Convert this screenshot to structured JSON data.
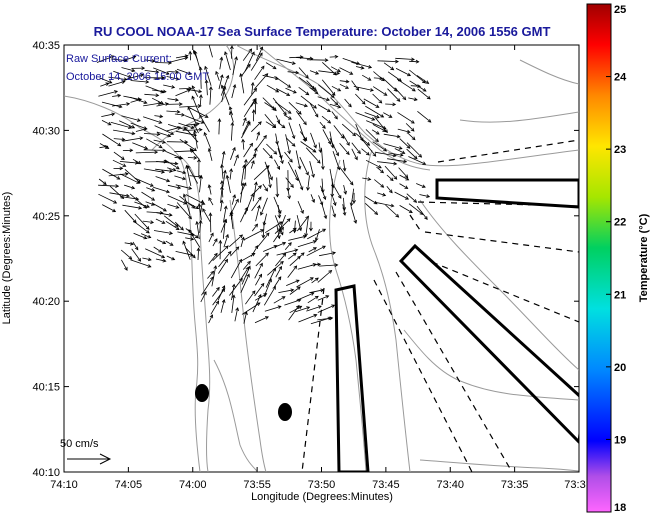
{
  "chart_data": {
    "type": "map",
    "title": "RU COOL  NOAA-17  Sea Surface Temperature:  October 14, 2006 1556 GMT",
    "subtitle_lines": [
      "Raw Surface Current:",
      "October 14, 2006 15:00 GMT"
    ],
    "xlabel": "Longitude (Degrees:Minutes)",
    "ylabel": "Latitude (Degrees:Minutes)",
    "x_ticks": [
      "74:10",
      "74:05",
      "74:00",
      "73:55",
      "73:50",
      "73:45",
      "73:40",
      "73:35",
      "73:3"
    ],
    "y_ticks": [
      "40:10",
      "40:15",
      "40:20",
      "40:25",
      "40:30",
      "40:35"
    ],
    "xlim_minutes_west": [
      10,
      30
    ],
    "ylim_minutes_north": [
      10,
      35
    ],
    "scale_label": "50 cm/s",
    "colorbar": {
      "label": "Temperature (°C)",
      "ticks": [
        "18",
        "19",
        "20",
        "21",
        "22",
        "23",
        "24",
        "25"
      ],
      "range": [
        18,
        25
      ]
    }
  },
  "colors": {
    "title": "#1a1a9c",
    "coast": "#9a9a9a",
    "vectors": "#000000"
  }
}
